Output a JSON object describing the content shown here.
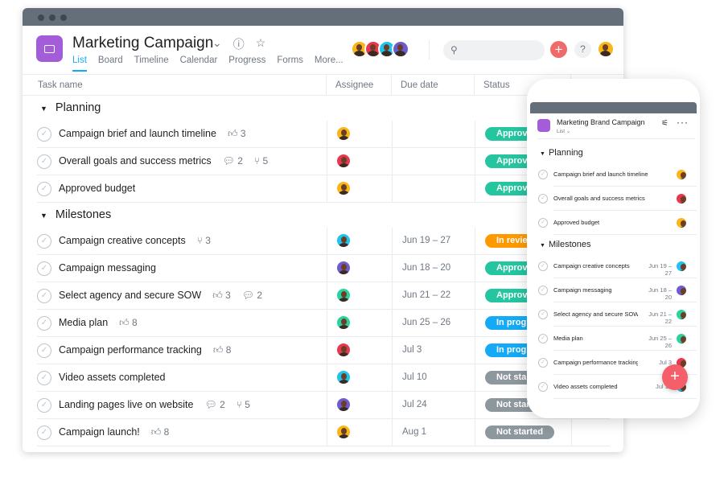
{
  "colors": {
    "accent": "#14aaf5",
    "approved": "#25c5a0",
    "in_review": "#fd9a00",
    "in_progress": "#14aaf5",
    "not_started": "#8d979e",
    "brand": "#a45dd9"
  },
  "people": {
    "A": "#f8b618",
    "B": "#e8384f",
    "C": "#1fc3ee",
    "D": "#6d5bd0",
    "E": "#2bd29e"
  },
  "header": {
    "title": "Marketing Campaign",
    "tabs": [
      "List",
      "Board",
      "Timeline",
      "Calendar",
      "Progress",
      "Forms",
      "More..."
    ],
    "active_tab": "List",
    "team": [
      "A",
      "B",
      "C",
      "D"
    ],
    "search_placeholder": "",
    "help_label": "?",
    "add_label": "+"
  },
  "columns": [
    "Task name",
    "Assignee",
    "Due date",
    "Status"
  ],
  "sections": [
    {
      "name": "Planning",
      "tasks": [
        {
          "name": "Campaign brief and launch timeline",
          "likes": 3,
          "assignee": "A",
          "due": "",
          "status": "Approved",
          "status_key": "approved"
        },
        {
          "name": "Overall goals and success metrics",
          "comments": 2,
          "subtasks": 5,
          "assignee": "B",
          "due": "",
          "status": "Approved",
          "status_key": "approved"
        },
        {
          "name": "Approved budget",
          "assignee": "A",
          "due": "",
          "status": "Approved",
          "status_key": "approved"
        }
      ]
    },
    {
      "name": "Milestones",
      "tasks": [
        {
          "name": "Campaign creative concepts",
          "subtasks": 3,
          "assignee": "C",
          "due": "Jun 19 – 27",
          "status": "In review",
          "status_key": "in_review"
        },
        {
          "name": "Campaign messaging",
          "assignee": "D",
          "due": "Jun 18 – 20",
          "status": "Approved",
          "status_key": "approved"
        },
        {
          "name": "Select agency and secure SOW",
          "likes": 3,
          "comments": 2,
          "assignee": "E",
          "due": "Jun 21 – 22",
          "status": "Approved",
          "status_key": "approved"
        },
        {
          "name": "Media plan",
          "likes": 8,
          "assignee": "E",
          "due": "Jun 25 – 26",
          "status": "In progress",
          "status_key": "in_progress"
        },
        {
          "name": "Campaign performance tracking",
          "likes": 8,
          "assignee": "B",
          "due": "Jul 3",
          "status": "In progress",
          "status_key": "in_progress"
        },
        {
          "name": "Video assets completed",
          "assignee": "C",
          "due": "Jul 10",
          "status": "Not started",
          "status_key": "not_started"
        },
        {
          "name": "Landing pages live on website",
          "comments": 2,
          "subtasks": 5,
          "assignee": "D",
          "due": "Jul 24",
          "status": "Not started",
          "status_key": "not_started"
        },
        {
          "name": "Campaign launch!",
          "likes": 8,
          "assignee": "A",
          "due": "Aug 1",
          "status": "Not started",
          "status_key": "not_started"
        }
      ]
    }
  ],
  "mobile": {
    "title": "Marketing Brand Campaign",
    "view": "List ⌄",
    "fab": "+",
    "sections": [
      {
        "name": "Planning",
        "tasks": [
          {
            "name": "Campaign brief and launch timeline",
            "due": "",
            "assignee": "A"
          },
          {
            "name": "Overall goals and success metrics",
            "due": "",
            "assignee": "B"
          },
          {
            "name": "Approved budget",
            "due": "",
            "assignee": "A"
          }
        ]
      },
      {
        "name": "Milestones",
        "tasks": [
          {
            "name": "Campaign creative concepts",
            "due": "Jun 19 – 27",
            "assignee": "C"
          },
          {
            "name": "Campaign messaging",
            "due": "Jun 18 – 20",
            "assignee": "D"
          },
          {
            "name": "Select agency and secure SOW",
            "due": "Jun 21 – 22",
            "assignee": "E"
          },
          {
            "name": "Media plan",
            "due": "Jun 25 – 26",
            "assignee": "E"
          },
          {
            "name": "Campaign performance tracking",
            "due": "Jul 3",
            "assignee": "B"
          },
          {
            "name": "Video assets completed",
            "due": "Jul 10",
            "assignee": "C"
          }
        ]
      }
    ]
  }
}
